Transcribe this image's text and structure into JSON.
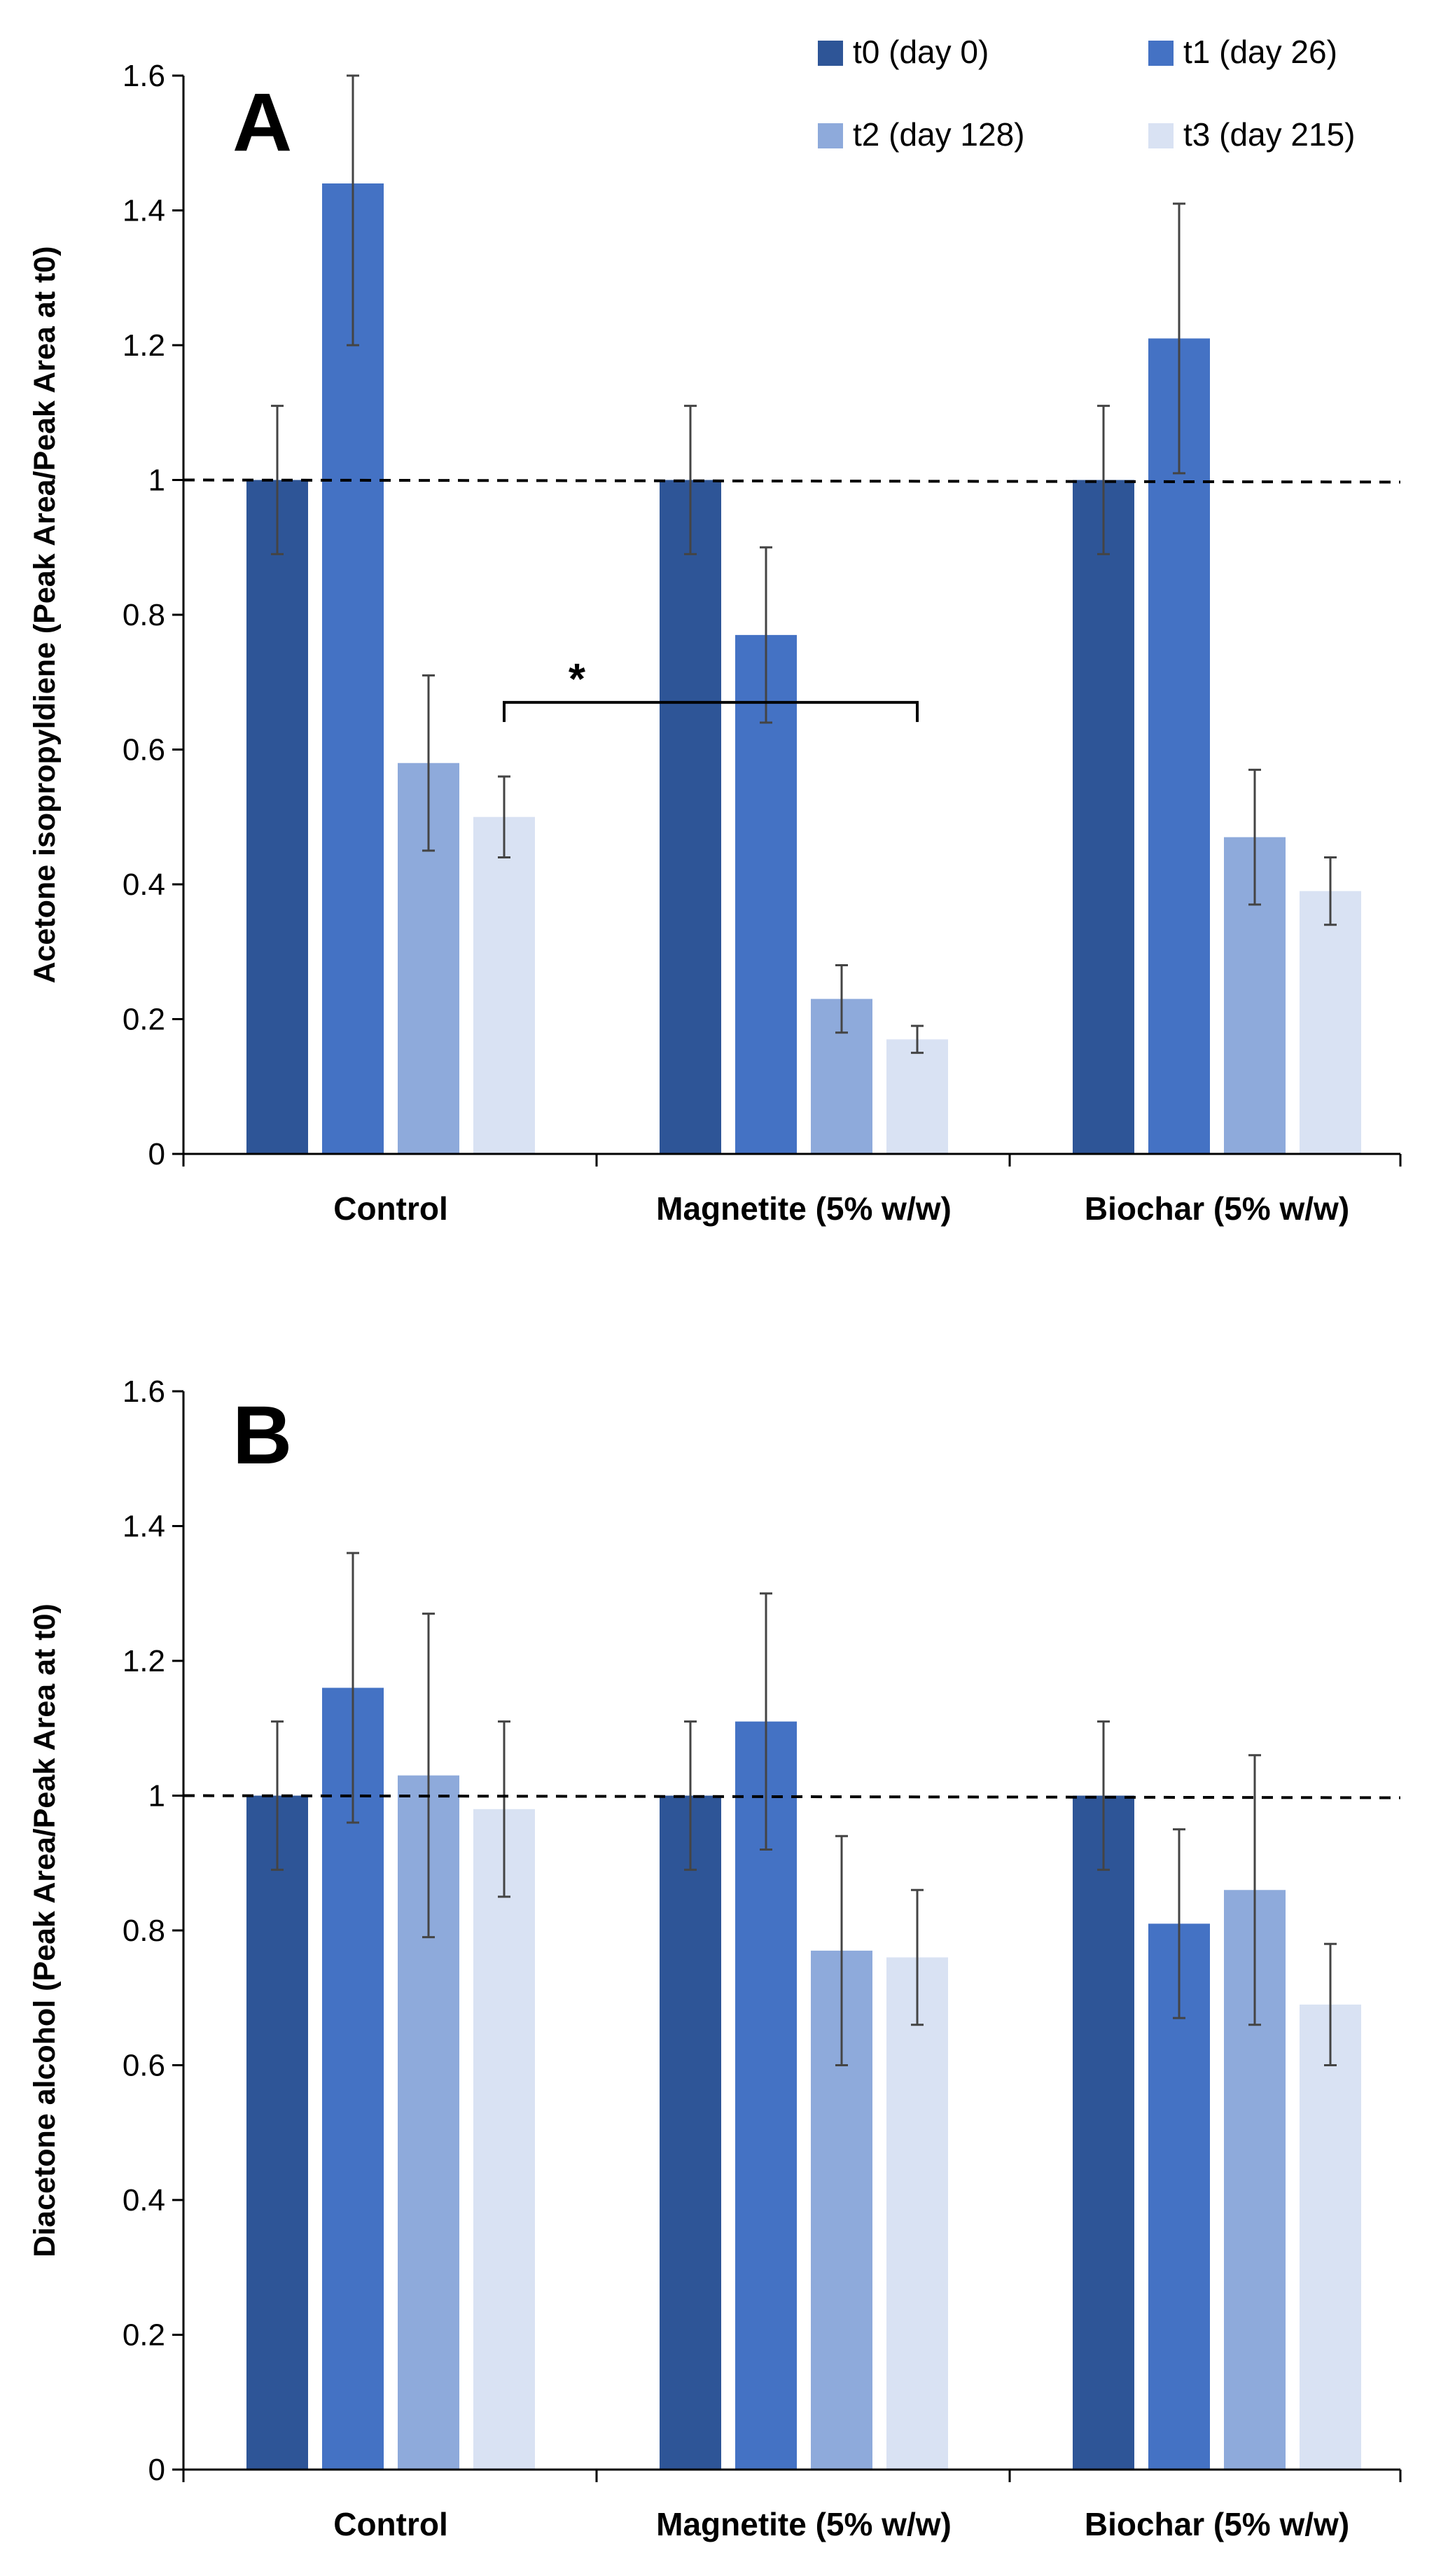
{
  "chart_data": [
    {
      "type": "bar",
      "panel_label": "A",
      "ylabel": "Acetone isopropyldiene (Peak Area/Peak Area at t0)",
      "ylim": [
        0,
        1.6
      ],
      "yticks": [
        0,
        0.2,
        0.4,
        0.6,
        0.8,
        1,
        1.2,
        1.4,
        1.6
      ],
      "ytick_labels": [
        "0",
        "0.2",
        "0.4",
        "0.6",
        "0.8",
        "1",
        "1.2",
        "1.4",
        "1.6"
      ],
      "categories": [
        "Control",
        "Magnetite (5% w/w)",
        "Biochar (5% w/w)"
      ],
      "series": [
        {
          "name": "t0 (day 0)",
          "color": "#2e5597",
          "values": [
            1.0,
            1.0,
            1.0
          ],
          "errors": [
            0.11,
            0.11,
            0.11
          ]
        },
        {
          "name": "t1 (day 26)",
          "color": "#4472c4",
          "values": [
            1.44,
            0.77,
            1.21
          ],
          "errors": [
            0.24,
            0.13,
            0.2
          ]
        },
        {
          "name": "t2 (day 128)",
          "color": "#8eaadb",
          "values": [
            0.58,
            0.23,
            0.47
          ],
          "errors": [
            0.13,
            0.05,
            0.1
          ]
        },
        {
          "name": "t3 (day 215)",
          "color": "#d9e2f3",
          "values": [
            0.5,
            0.17,
            0.39
          ],
          "errors": [
            0.06,
            0.02,
            0.05
          ]
        }
      ],
      "reference_line": 1,
      "annotations": [
        {
          "text": "*",
          "from": {
            "category": "Control",
            "series": "t3 (day 215)"
          },
          "to": {
            "category": "Magnetite (5% w/w)",
            "series": "t3 (day 215)"
          },
          "at_value": 0.67
        }
      ]
    },
    {
      "type": "bar",
      "panel_label": "B",
      "ylabel": "Diacetone alcohol (Peak Area/Peak Area at t0)",
      "ylim": [
        0,
        1.6
      ],
      "yticks": [
        0,
        0.2,
        0.4,
        0.6,
        0.8,
        1,
        1.2,
        1.4,
        1.6
      ],
      "ytick_labels": [
        "0",
        "0.2",
        "0.4",
        "0.6",
        "0.8",
        "1",
        "1.2",
        "1.4",
        "1.6"
      ],
      "categories": [
        "Control",
        "Magnetite (5% w/w)",
        "Biochar (5% w/w)"
      ],
      "series": [
        {
          "name": "t0 (day 0)",
          "color": "#2e5597",
          "values": [
            1.0,
            1.0,
            1.0
          ],
          "errors": [
            0.11,
            0.11,
            0.11
          ]
        },
        {
          "name": "t1 (day 26)",
          "color": "#4472c4",
          "values": [
            1.16,
            1.11,
            0.81
          ],
          "errors": [
            0.2,
            0.19,
            0.14
          ]
        },
        {
          "name": "t2 (day 128)",
          "color": "#8eaadb",
          "values": [
            1.03,
            0.77,
            0.86
          ],
          "errors": [
            0.24,
            0.17,
            0.2
          ]
        },
        {
          "name": "t3 (day 215)",
          "color": "#d9e2f3",
          "values": [
            0.98,
            0.76,
            0.69
          ],
          "errors": [
            0.13,
            0.1,
            0.09
          ]
        }
      ],
      "reference_line": 1,
      "annotations": []
    }
  ],
  "legend": {
    "placement": "top-right",
    "entries": [
      {
        "label": "t0 (day 0)",
        "color": "#2e5597"
      },
      {
        "label": "t1 (day 26)",
        "color": "#4472c4"
      },
      {
        "label": "t2 (day 128)",
        "color": "#8eaadb"
      },
      {
        "label": "t3 (day 215)",
        "color": "#d9e2f3"
      }
    ]
  },
  "colors": {
    "axis": "#000000",
    "error_bar": "#444444",
    "reference_line": "#000000"
  }
}
